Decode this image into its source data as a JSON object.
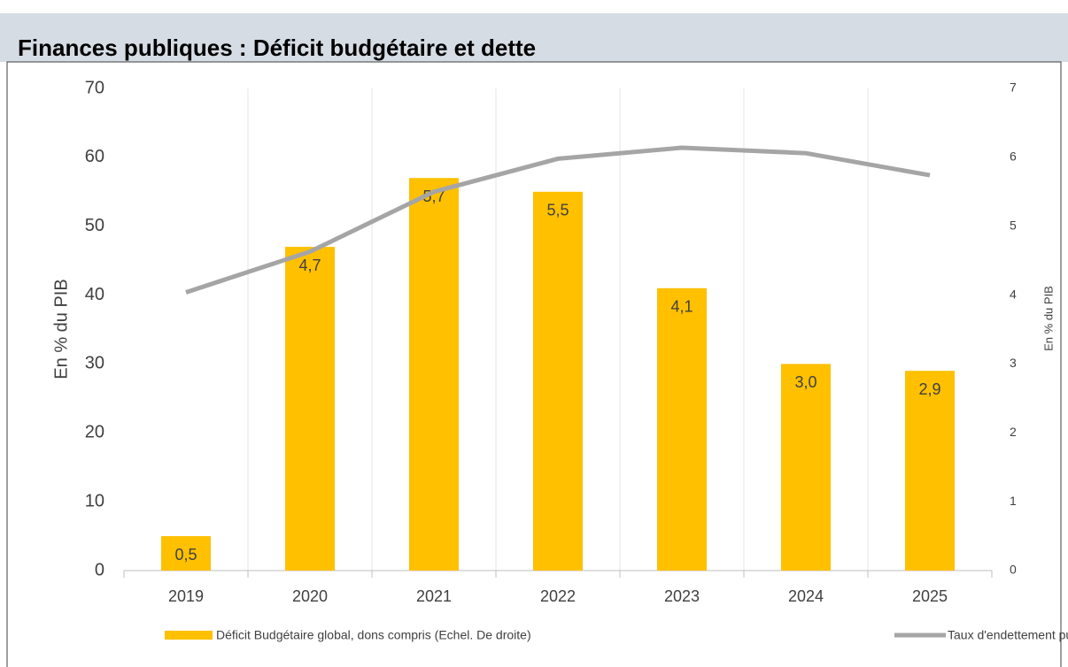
{
  "chart_data": {
    "type": "bar_line",
    "title": "Finances publiques : Déficit budgétaire et dette",
    "ylabel": "En % du PIB",
    "y2label": "En % du PIB",
    "categories": [
      "2019",
      "2020",
      "2021",
      "2022",
      "2023",
      "2024",
      "2025"
    ],
    "ylim": [
      0,
      70
    ],
    "yticks": [
      0,
      10,
      20,
      30,
      40,
      50,
      60,
      70
    ],
    "y2lim": [
      0,
      7
    ],
    "y2ticks": [
      0,
      1,
      2,
      3,
      4,
      5,
      6,
      7
    ],
    "grid": true,
    "series": [
      {
        "name": "Déficit Budgétaire global, dons compris (Echel. De droite)",
        "type": "bar",
        "axis": "y2",
        "color": "#ffc000",
        "values": [
          0.5,
          4.7,
          5.7,
          5.5,
          4.1,
          3.0,
          2.9
        ],
        "value_labels": [
          "0,5",
          "4,7",
          "5,7",
          "5,5",
          "4,1",
          "3,0",
          "2,9"
        ]
      },
      {
        "name": "Taux d'endettement public",
        "type": "line",
        "color": "#a5a5a5",
        "values": [
          40.4,
          46.3,
          55.0,
          59.8,
          61.4,
          60.6,
          57.4
        ]
      }
    ]
  }
}
